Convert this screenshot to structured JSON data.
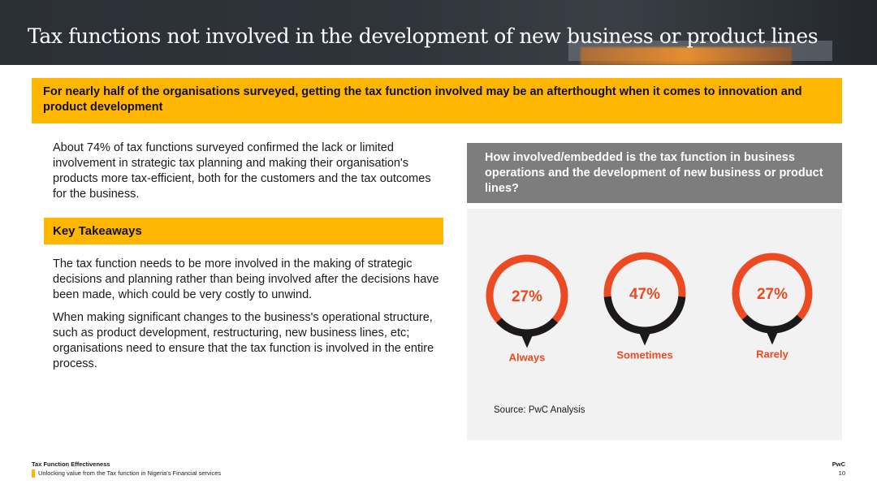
{
  "header": {
    "title": "Tax functions not involved in the development of new business or product lines"
  },
  "banner": {
    "text": "For nearly half of the organisations surveyed, getting the tax function involved may be an afterthought when it comes to innovation and product development"
  },
  "intro": {
    "text": "About 74% of tax functions surveyed confirmed the lack or limited involvement in strategic tax planning and making their organisation's products more tax-efficient, both for the customers and the tax outcomes for the business."
  },
  "key_takeaways": {
    "heading": "Key Takeaways",
    "paragraphs": [
      "The tax function needs to be more involved in the making of strategic decisions and planning  rather than being involved after the decisions have been made, which could be very costly to unwind.",
      "When making significant changes to the business's operational structure, such as product development, restructuring, new business lines, etc; organisations need to ensure that the tax function is involved in the entire process."
    ]
  },
  "chart_header": {
    "question": "How involved/embedded is the tax function in business operations and the development of new business or product lines?"
  },
  "colors": {
    "accent_orange": "#ffb600",
    "ring_red": "#eb4a22",
    "ring_black": "#1a1a1a",
    "header_grey": "#7d7d7d",
    "panel_grey": "#f2f2f2"
  },
  "chart_data": {
    "type": "pie",
    "categories": [
      "Always",
      "Sometimes",
      "Rarely"
    ],
    "values": [
      27,
      47,
      27
    ],
    "value_labels": [
      "27%",
      "47%",
      "27%"
    ],
    "units": "%",
    "source": "Source: PwC Analysis"
  },
  "footer": {
    "left_title": "Tax Function Effectiveness",
    "left_subtitle": "Unlocking value from the Tax function in Nigeria's Financial services",
    "brand": "PwC",
    "page_number": "10"
  }
}
